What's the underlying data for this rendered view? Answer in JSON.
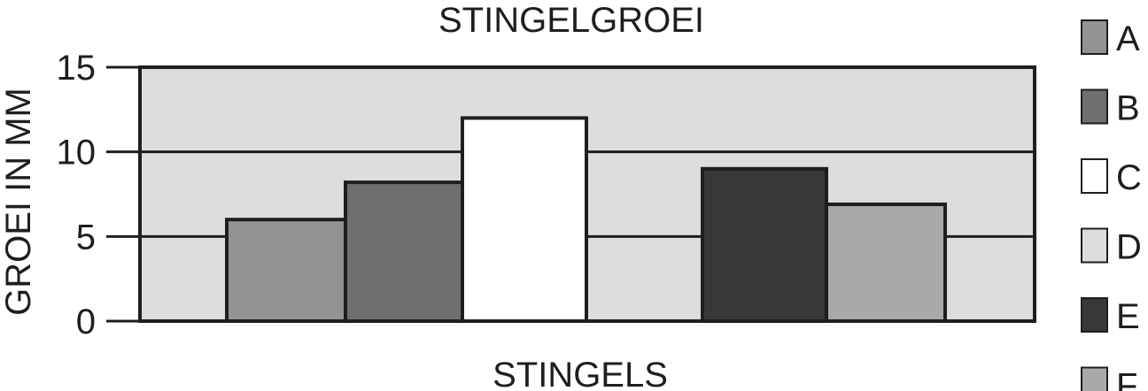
{
  "chart_data": {
    "type": "bar",
    "title": "STINGELGROEI",
    "xlabel": "STINGELS",
    "ylabel": "GROEI IN MM",
    "ylim": [
      0,
      15
    ],
    "yticks": [
      0,
      5,
      10,
      15
    ],
    "grid": true,
    "legend_position": "right",
    "series": [
      {
        "name": "A",
        "value": 6,
        "color": "#939393"
      },
      {
        "name": "B",
        "value": 8.2,
        "color": "#6f6f6f"
      },
      {
        "name": "C",
        "value": 12,
        "color": "#ffffff"
      },
      {
        "name": "D",
        "value": null,
        "color": "#dddddd"
      },
      {
        "name": "E",
        "value": 9,
        "color": "#383838"
      },
      {
        "name": "F",
        "value": 6.9,
        "color": "#a9a9a9"
      }
    ]
  }
}
